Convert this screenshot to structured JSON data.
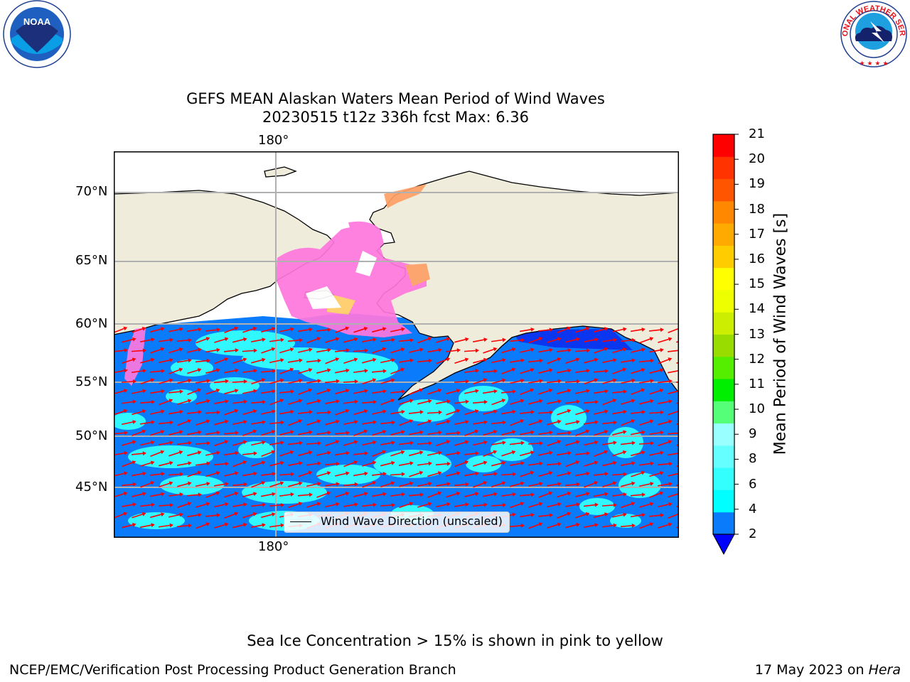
{
  "header": {
    "title_line1": "GEFS MEAN Alaskan Waters Mean Period of Wind Waves",
    "title_line2": "20230515 t12z 336h fcst   Max: 6.36"
  },
  "logos": {
    "noaa_text": "NOAA",
    "noaa_ring_top": "NATIONAL OCEANIC AND ATMOSPHERIC ADMINISTRATION",
    "noaa_ring_bottom": "U.S. DEPARTMENT OF COMMERCE",
    "nws_ring": "NATIONAL WEATHER SERVICE"
  },
  "map": {
    "lon_label_top": "180°",
    "lon_label_bottom": "180°",
    "lat_labels": [
      "70°N",
      "65°N",
      "60°N",
      "55°N",
      "50°N",
      "45°N"
    ],
    "legend_label": "Wind Wave Direction (unscaled)",
    "colors": {
      "land": "#efecdc",
      "ocean_low": "#0a7bfb",
      "ocean_mid": "#33ffff",
      "ice_pink": "#ff77dd",
      "ice_orange": "#ffa066",
      "arrow": "#ff0000",
      "grid": "#b0b0b0"
    }
  },
  "colorbar": {
    "label": "Mean Period of Wind Waves [s]",
    "ticks": [
      "21",
      "20",
      "19",
      "18",
      "17",
      "16",
      "15",
      "14",
      "13",
      "12",
      "11",
      "10",
      "9",
      "8",
      "6",
      "4",
      "2"
    ],
    "colors_bottom_to_top": [
      "#0a7bfb",
      "#00ffff",
      "#33ffff",
      "#66ffff",
      "#99ffff",
      "#55ff77",
      "#00ee00",
      "#55ee00",
      "#99dd00",
      "#ccee00",
      "#eeff00",
      "#ffff00",
      "#ffcc00",
      "#ffaa00",
      "#ff8800",
      "#ff5500",
      "#ff3300",
      "#ff0000"
    ],
    "under_color": "#0000ff"
  },
  "footer": {
    "ice_note": "Sea Ice Concentration > 15% is shown in pink to yellow",
    "branch": "NCEP/EMC/Verification Post Processing Product Generation Branch",
    "date": "17 May 2023 on ",
    "machine": "Hera"
  }
}
